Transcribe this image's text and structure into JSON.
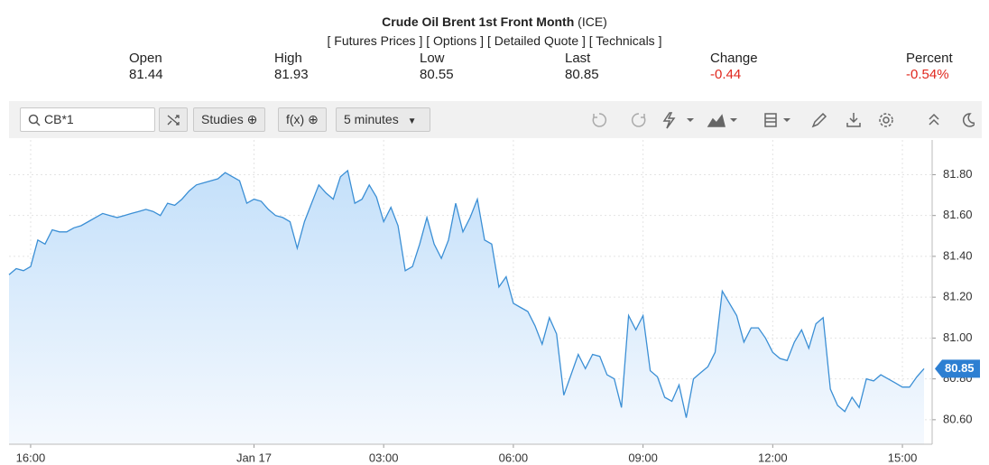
{
  "header": {
    "title": "Crude Oil Brent 1st Front Month",
    "exchange": "(ICE)",
    "links": [
      "[ Futures Prices ]",
      "[ Options ]",
      "[ Detailed Quote ]",
      "[ Technicals ]"
    ]
  },
  "quote": [
    {
      "label": "Open",
      "value": "81.44"
    },
    {
      "label": "High",
      "value": "81.93"
    },
    {
      "label": "Low",
      "value": "80.55"
    },
    {
      "label": "Last",
      "value": "80.85"
    },
    {
      "label": "Change",
      "value": "-0.44"
    },
    {
      "label": "Percent",
      "value": "-0.54%"
    }
  ],
  "toolbar": {
    "symbol": "CB*1",
    "studies": "Studies",
    "functions": "f(x)",
    "interval": "5 minutes"
  },
  "chart_data": {
    "type": "area",
    "categories": [
      null,
      null,
      null,
      "16:00",
      null,
      null,
      null,
      null,
      null,
      null,
      null,
      null,
      null,
      null,
      null,
      null,
      null,
      null,
      null,
      null,
      null,
      null,
      null,
      null,
      null,
      null,
      null,
      null,
      null,
      null,
      null,
      null,
      null,
      null,
      "Jan 17",
      null,
      null,
      null,
      null,
      null,
      null,
      null,
      null,
      null,
      null,
      null,
      null,
      null,
      null,
      null,
      null,
      null,
      "03:00",
      null,
      null,
      null,
      null,
      null,
      null,
      null,
      null,
      null,
      null,
      null,
      null,
      null,
      null,
      null,
      null,
      null,
      "06:00",
      null,
      null,
      null,
      null,
      null,
      null,
      null,
      null,
      null,
      null,
      null,
      null,
      null,
      null,
      null,
      null,
      null,
      "09:00",
      null,
      null,
      null,
      null,
      null,
      null,
      null,
      null,
      null,
      null,
      null,
      null,
      null,
      null,
      null,
      null,
      null,
      "12:00",
      null,
      null,
      null,
      null,
      null,
      null,
      null,
      null,
      null,
      null,
      null,
      null,
      null,
      null,
      null,
      null,
      null,
      "15:00",
      null,
      null,
      null
    ],
    "values": [
      81.31,
      81.34,
      81.33,
      81.35,
      81.48,
      81.46,
      81.53,
      81.52,
      81.52,
      81.54,
      81.55,
      81.57,
      81.59,
      81.61,
      81.6,
      81.59,
      81.6,
      81.61,
      81.62,
      81.63,
      81.62,
      81.6,
      81.66,
      81.65,
      81.68,
      81.72,
      81.75,
      81.76,
      81.77,
      81.78,
      81.81,
      81.79,
      81.77,
      81.66,
      81.68,
      81.67,
      81.63,
      81.6,
      81.59,
      81.57,
      81.44,
      81.57,
      81.66,
      81.75,
      81.71,
      81.68,
      81.79,
      81.82,
      81.66,
      81.68,
      81.75,
      81.69,
      81.57,
      81.64,
      81.55,
      81.33,
      81.35,
      81.46,
      81.59,
      81.46,
      81.39,
      81.48,
      81.66,
      81.52,
      81.59,
      81.68,
      81.48,
      81.46,
      81.25,
      81.3,
      81.17,
      81.15,
      81.13,
      81.06,
      80.97,
      81.1,
      81.02,
      80.72,
      80.82,
      80.92,
      80.85,
      80.92,
      80.91,
      80.82,
      80.8,
      80.66,
      81.11,
      81.04,
      81.11,
      80.84,
      80.81,
      80.71,
      80.69,
      80.77,
      80.61,
      80.8,
      80.83,
      80.86,
      80.93,
      81.23,
      81.17,
      81.11,
      80.98,
      81.05,
      81.05,
      81.0,
      80.93,
      80.9,
      80.89,
      80.98,
      81.04,
      80.95,
      81.07,
      81.1,
      80.75,
      80.67,
      80.64,
      80.71,
      80.66,
      80.8,
      80.79,
      80.82,
      80.8,
      80.78,
      80.76,
      80.76,
      80.81,
      80.85
    ],
    "color": "#3b8fd5",
    "ylim": [
      80.48,
      81.97
    ],
    "yticks": [
      {
        "value": 80.6,
        "label": "80.60"
      },
      {
        "value": 80.8,
        "label": "80.80"
      },
      {
        "value": 81.0,
        "label": "81.00"
      },
      {
        "value": 81.2,
        "label": "81.20"
      },
      {
        "value": 81.4,
        "label": "81.40"
      },
      {
        "value": 81.6,
        "label": "81.60"
      },
      {
        "value": 81.8,
        "label": "81.80"
      }
    ],
    "last_price": {
      "value": 80.85,
      "label": "80.85"
    },
    "grid": true
  }
}
